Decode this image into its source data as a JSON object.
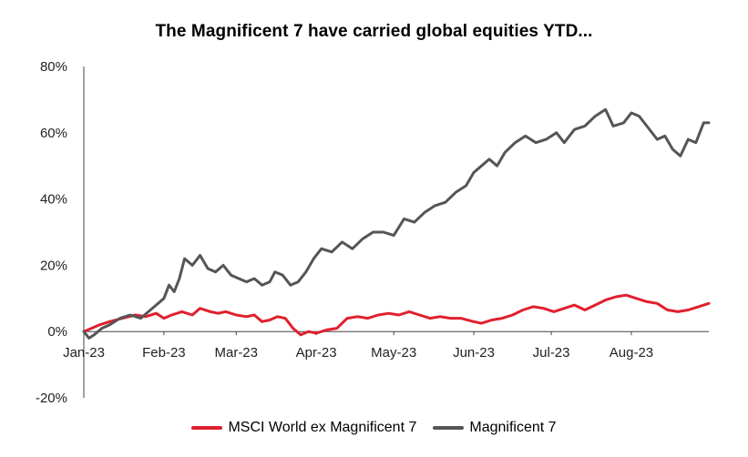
{
  "chart_data": {
    "type": "line",
    "title": "The Magnificent 7 have carried global equities YTD...",
    "xlabel": "",
    "ylabel": "",
    "y_unit": "%",
    "ylim": [
      -20,
      80
    ],
    "y_ticks": [
      -20,
      0,
      20,
      40,
      60,
      80
    ],
    "y_tick_labels": [
      "-20%",
      "0%",
      "20%",
      "40%",
      "60%",
      "80%"
    ],
    "x_range": [
      "2023-01-01",
      "2023-08-31"
    ],
    "x_ticks": [
      "2023-01-01",
      "2023-02-01",
      "2023-03-01",
      "2023-04-01",
      "2023-05-01",
      "2023-06-01",
      "2023-07-01",
      "2023-08-01"
    ],
    "x_tick_labels": [
      "Jan-23",
      "Feb-23",
      "Mar-23",
      "Apr-23",
      "May-23",
      "Jun-23",
      "Jul-23",
      "Aug-23"
    ],
    "grid": false,
    "legend_position": "bottom",
    "series": [
      {
        "name": "MSCI World ex Magnificent 7",
        "color": "#e0202f",
        "points": [
          [
            "2023-01-01",
            0
          ],
          [
            "2023-01-04",
            1
          ],
          [
            "2023-01-07",
            2
          ],
          [
            "2023-01-11",
            3
          ],
          [
            "2023-01-16",
            4
          ],
          [
            "2023-01-21",
            5
          ],
          [
            "2023-01-25",
            4.5
          ],
          [
            "2023-01-29",
            5.5
          ],
          [
            "2023-02-01",
            4
          ],
          [
            "2023-02-04",
            5
          ],
          [
            "2023-02-08",
            6
          ],
          [
            "2023-02-12",
            5
          ],
          [
            "2023-02-15",
            7
          ],
          [
            "2023-02-19",
            6
          ],
          [
            "2023-02-22",
            5.5
          ],
          [
            "2023-02-25",
            6
          ],
          [
            "2023-03-01",
            5
          ],
          [
            "2023-03-05",
            4.5
          ],
          [
            "2023-03-08",
            5
          ],
          [
            "2023-03-11",
            3
          ],
          [
            "2023-03-14",
            3.5
          ],
          [
            "2023-03-17",
            4.5
          ],
          [
            "2023-03-20",
            4
          ],
          [
            "2023-03-23",
            1
          ],
          [
            "2023-03-26",
            -1
          ],
          [
            "2023-03-29",
            0
          ],
          [
            "2023-04-01",
            -0.5
          ],
          [
            "2023-04-05",
            0.5
          ],
          [
            "2023-04-09",
            1
          ],
          [
            "2023-04-13",
            4
          ],
          [
            "2023-04-17",
            4.5
          ],
          [
            "2023-04-21",
            4
          ],
          [
            "2023-04-25",
            5
          ],
          [
            "2023-04-29",
            5.5
          ],
          [
            "2023-05-03",
            5
          ],
          [
            "2023-05-07",
            6
          ],
          [
            "2023-05-11",
            5
          ],
          [
            "2023-05-15",
            4
          ],
          [
            "2023-05-19",
            4.5
          ],
          [
            "2023-05-23",
            4
          ],
          [
            "2023-05-27",
            4
          ],
          [
            "2023-06-01",
            3
          ],
          [
            "2023-06-04",
            2.5
          ],
          [
            "2023-06-08",
            3.5
          ],
          [
            "2023-06-12",
            4
          ],
          [
            "2023-06-16",
            5
          ],
          [
            "2023-06-20",
            6.5
          ],
          [
            "2023-06-24",
            7.5
          ],
          [
            "2023-06-28",
            7
          ],
          [
            "2023-07-02",
            6
          ],
          [
            "2023-07-06",
            7
          ],
          [
            "2023-07-10",
            8
          ],
          [
            "2023-07-14",
            6.5
          ],
          [
            "2023-07-18",
            8
          ],
          [
            "2023-07-22",
            9.5
          ],
          [
            "2023-07-26",
            10.5
          ],
          [
            "2023-07-30",
            11
          ],
          [
            "2023-08-03",
            10
          ],
          [
            "2023-08-07",
            9
          ],
          [
            "2023-08-11",
            8.5
          ],
          [
            "2023-08-15",
            6.5
          ],
          [
            "2023-08-19",
            6
          ],
          [
            "2023-08-23",
            6.5
          ],
          [
            "2023-08-27",
            7.5
          ],
          [
            "2023-08-31",
            8.5
          ]
        ]
      },
      {
        "name": "Magnificent 7",
        "color": "#555555",
        "points": [
          [
            "2023-01-01",
            0
          ],
          [
            "2023-01-03",
            -2
          ],
          [
            "2023-01-05",
            -1
          ],
          [
            "2023-01-08",
            1
          ],
          [
            "2023-01-11",
            2
          ],
          [
            "2023-01-15",
            4
          ],
          [
            "2023-01-19",
            5
          ],
          [
            "2023-01-23",
            4
          ],
          [
            "2023-01-26",
            6
          ],
          [
            "2023-01-29",
            8
          ],
          [
            "2023-02-01",
            10
          ],
          [
            "2023-02-03",
            14
          ],
          [
            "2023-02-05",
            12
          ],
          [
            "2023-02-07",
            16
          ],
          [
            "2023-02-09",
            22
          ],
          [
            "2023-02-12",
            20
          ],
          [
            "2023-02-15",
            23
          ],
          [
            "2023-02-18",
            19
          ],
          [
            "2023-02-21",
            18
          ],
          [
            "2023-02-24",
            20
          ],
          [
            "2023-02-27",
            17
          ],
          [
            "2023-03-02",
            16
          ],
          [
            "2023-03-05",
            15
          ],
          [
            "2023-03-08",
            16
          ],
          [
            "2023-03-11",
            14
          ],
          [
            "2023-03-14",
            15
          ],
          [
            "2023-03-16",
            18
          ],
          [
            "2023-03-19",
            17
          ],
          [
            "2023-03-22",
            14
          ],
          [
            "2023-03-25",
            15
          ],
          [
            "2023-03-28",
            18
          ],
          [
            "2023-03-31",
            22
          ],
          [
            "2023-04-03",
            25
          ],
          [
            "2023-04-07",
            24
          ],
          [
            "2023-04-11",
            27
          ],
          [
            "2023-04-15",
            25
          ],
          [
            "2023-04-19",
            28
          ],
          [
            "2023-04-23",
            30
          ],
          [
            "2023-04-27",
            30
          ],
          [
            "2023-05-01",
            29
          ],
          [
            "2023-05-05",
            34
          ],
          [
            "2023-05-09",
            33
          ],
          [
            "2023-05-13",
            36
          ],
          [
            "2023-05-17",
            38
          ],
          [
            "2023-05-21",
            39
          ],
          [
            "2023-05-25",
            42
          ],
          [
            "2023-05-29",
            44
          ],
          [
            "2023-06-01",
            48
          ],
          [
            "2023-06-04",
            50
          ],
          [
            "2023-06-07",
            52
          ],
          [
            "2023-06-10",
            50
          ],
          [
            "2023-06-13",
            54
          ],
          [
            "2023-06-17",
            57
          ],
          [
            "2023-06-21",
            59
          ],
          [
            "2023-06-25",
            57
          ],
          [
            "2023-06-29",
            58
          ],
          [
            "2023-07-03",
            60
          ],
          [
            "2023-07-06",
            57
          ],
          [
            "2023-07-10",
            61
          ],
          [
            "2023-07-14",
            62
          ],
          [
            "2023-07-18",
            65
          ],
          [
            "2023-07-22",
            67
          ],
          [
            "2023-07-25",
            62
          ],
          [
            "2023-07-29",
            63
          ],
          [
            "2023-08-01",
            66
          ],
          [
            "2023-08-04",
            65
          ],
          [
            "2023-08-07",
            62
          ],
          [
            "2023-08-11",
            58
          ],
          [
            "2023-08-14",
            59
          ],
          [
            "2023-08-17",
            55
          ],
          [
            "2023-08-20",
            53
          ],
          [
            "2023-08-23",
            58
          ],
          [
            "2023-08-26",
            57
          ],
          [
            "2023-08-29",
            63
          ],
          [
            "2023-08-31",
            63
          ]
        ]
      }
    ]
  }
}
